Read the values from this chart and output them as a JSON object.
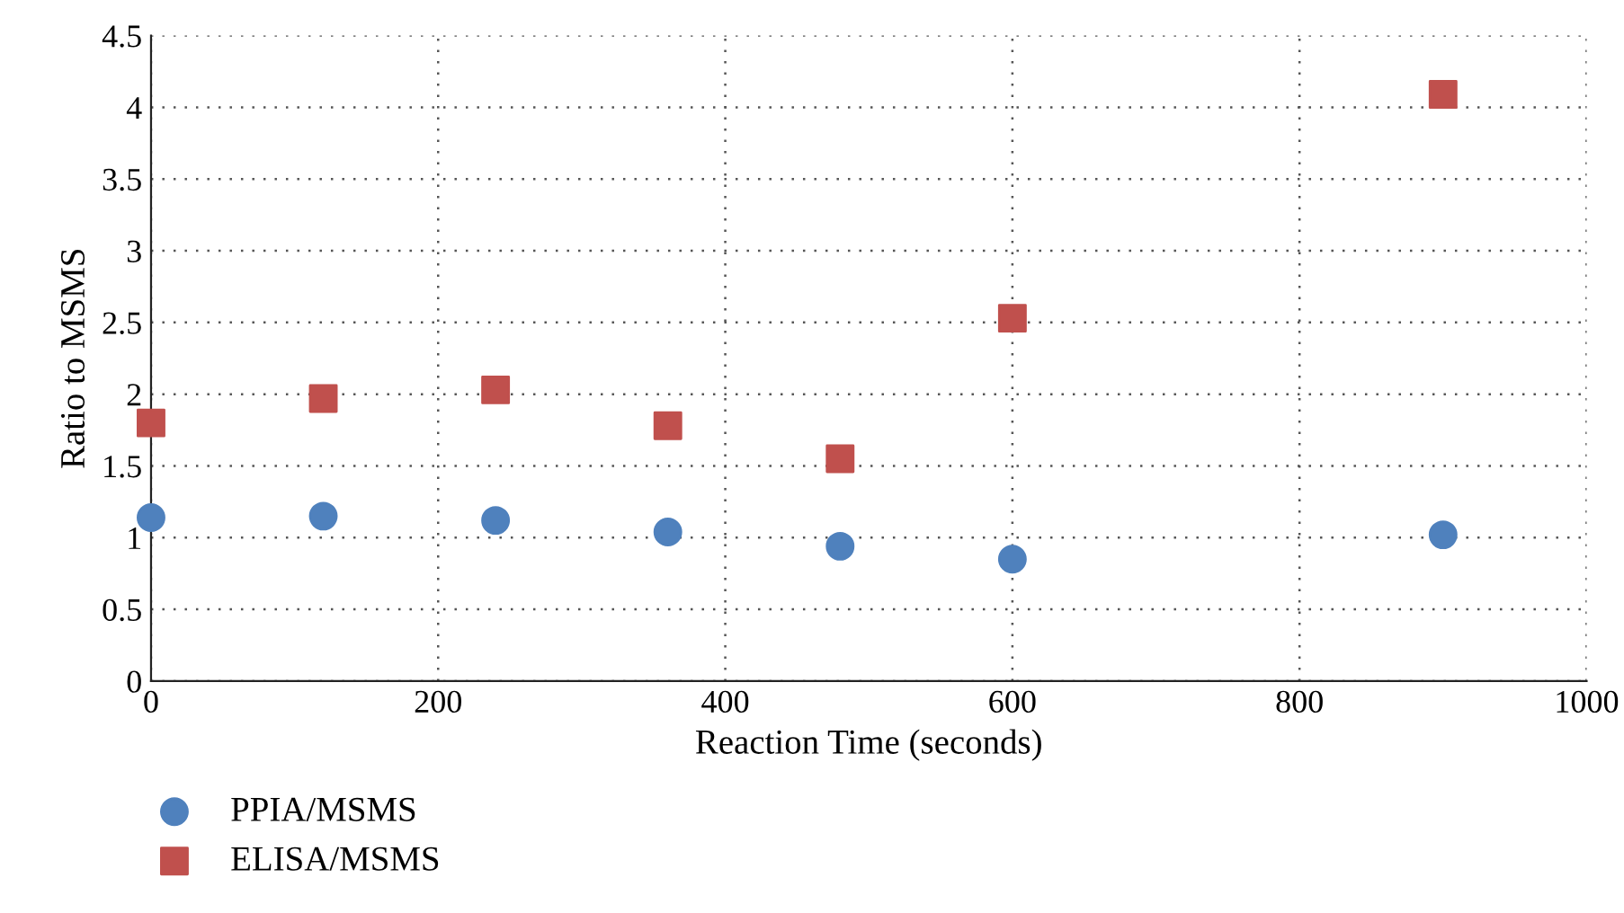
{
  "chart_data": {
    "type": "scatter",
    "xlabel": "Reaction Time (seconds)",
    "ylabel": "Ratio to MSMS",
    "x": [
      0,
      120,
      240,
      360,
      480,
      600,
      900
    ],
    "series": [
      {
        "name": "PPIA/MSMS",
        "color": "#4f81bd",
        "marker": "circle",
        "values": [
          1.14,
          1.15,
          1.12,
          1.04,
          0.94,
          0.85,
          1.02
        ]
      },
      {
        "name": "ELISA/MSMS",
        "color": "#c0504d",
        "marker": "square",
        "values": [
          1.8,
          1.97,
          2.03,
          1.78,
          1.55,
          2.53,
          4.09
        ]
      }
    ],
    "xlim": [
      0,
      1000
    ],
    "xticks": [
      0,
      200,
      400,
      600,
      800,
      1000
    ],
    "ylim": [
      0,
      4.5
    ],
    "yticks": [
      0,
      {
        "value": 0.5,
        "label": "0.5"
      },
      1,
      {
        "value": 1.5,
        "label": "1.5"
      },
      2,
      {
        "value": 2.5,
        "label": "2.5"
      },
      3,
      {
        "value": 3.5,
        "label": "3.5"
      },
      4,
      {
        "value": 4.5,
        "label": "4.5"
      }
    ],
    "grid": true,
    "legend": "bottom left"
  }
}
